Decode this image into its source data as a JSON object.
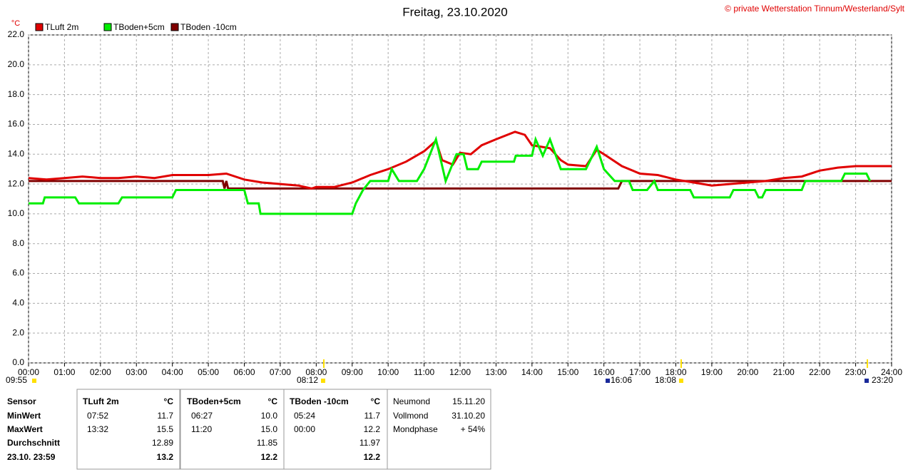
{
  "chart_data": {
    "type": "line",
    "title": "Freitag, 23.10.2020",
    "copyright": "© private Wetterstation Tinnum/Westerland/Sylt",
    "y_label": "°C",
    "xlim": [
      0,
      24
    ],
    "ylim": [
      0,
      22
    ],
    "grid": true,
    "xticks": [
      {
        "value": 0,
        "label": "00:00"
      },
      {
        "value": 1,
        "label": "01:00"
      },
      {
        "value": 2,
        "label": "02:00"
      },
      {
        "value": 3,
        "label": "03:00"
      },
      {
        "value": 4,
        "label": "04:00"
      },
      {
        "value": 5,
        "label": "05:00"
      },
      {
        "value": 6,
        "label": "06:00"
      },
      {
        "value": 7,
        "label": "07:00"
      },
      {
        "value": 8,
        "label": "08:00"
      },
      {
        "value": 9,
        "label": "09:00"
      },
      {
        "value": 10,
        "label": "10:00"
      },
      {
        "value": 11,
        "label": "11:00"
      },
      {
        "value": 12,
        "label": "12:00"
      },
      {
        "value": 13,
        "label": "13:00"
      },
      {
        "value": 14,
        "label": "14:00"
      },
      {
        "value": 15,
        "label": "15:00"
      },
      {
        "value": 16,
        "label": "16:00"
      },
      {
        "value": 17,
        "label": "17:00"
      },
      {
        "value": 18,
        "label": "18:00"
      },
      {
        "value": 19,
        "label": "19:00"
      },
      {
        "value": 20,
        "label": "20:00"
      },
      {
        "value": 21,
        "label": "21:00"
      },
      {
        "value": 22,
        "label": "22:00"
      },
      {
        "value": 23,
        "label": "23:00"
      },
      {
        "value": 24,
        "label": "24:00"
      }
    ],
    "yticks": [
      {
        "value": 0,
        "label": "0.0"
      },
      {
        "value": 2,
        "label": "2.0"
      },
      {
        "value": 4,
        "label": "4.0"
      },
      {
        "value": 6,
        "label": "6.0"
      },
      {
        "value": 8,
        "label": "8.0"
      },
      {
        "value": 10,
        "label": "10.0"
      },
      {
        "value": 12,
        "label": "12.0"
      },
      {
        "value": 14,
        "label": "14.0"
      },
      {
        "value": 16,
        "label": "16.0"
      },
      {
        "value": 18,
        "label": "18.0"
      },
      {
        "value": 20,
        "label": "20.0"
      },
      {
        "value": 22,
        "label": "22.0"
      }
    ],
    "annotations": [
      "09:55",
      "08:12",
      "16:06",
      "18:08",
      "23:20"
    ],
    "series": [
      {
        "name": "TLuft 2m",
        "color": "#e00000",
        "x": [
          0,
          0.5,
          1,
          1.5,
          2,
          2.5,
          3,
          3.5,
          4,
          4.5,
          5,
          5.5,
          6,
          6.5,
          7,
          7.5,
          7.87,
          8,
          8.5,
          9,
          9.5,
          10,
          10.5,
          11,
          11.33,
          11.5,
          11.8,
          12,
          12.3,
          12.6,
          13,
          13.53,
          13.8,
          14,
          14.5,
          14.8,
          15,
          15.5,
          15.8,
          16,
          16.5,
          17,
          17.5,
          18,
          18.5,
          19,
          19.5,
          20,
          20.5,
          21,
          21.5,
          22,
          22.5,
          23,
          24
        ],
        "values": [
          12.4,
          12.3,
          12.4,
          12.5,
          12.4,
          12.4,
          12.5,
          12.4,
          12.6,
          12.6,
          12.6,
          12.7,
          12.3,
          12.1,
          12.0,
          11.9,
          11.7,
          11.8,
          11.8,
          12.1,
          12.6,
          13.0,
          13.5,
          14.2,
          14.9,
          13.6,
          13.3,
          14.1,
          14.0,
          14.6,
          15.0,
          15.5,
          15.3,
          14.6,
          14.4,
          13.6,
          13.3,
          13.2,
          14.3,
          14.0,
          13.2,
          12.7,
          12.6,
          12.3,
          12.1,
          11.9,
          12.0,
          12.1,
          12.2,
          12.4,
          12.5,
          12.9,
          13.1,
          13.2,
          13.2
        ]
      },
      {
        "name": "TBoden+5cm",
        "color": "#00ee00",
        "x": [
          0,
          0.4,
          0.45,
          1.3,
          1.4,
          2.5,
          2.6,
          4.0,
          4.1,
          6.0,
          6.1,
          6.4,
          6.45,
          7,
          9,
          9.1,
          9.3,
          9.5,
          10,
          10.1,
          10.3,
          10.8,
          11,
          11.33,
          11.6,
          11.9,
          12.1,
          12.2,
          12.5,
          12.6,
          13.5,
          13.55,
          14.0,
          14.1,
          14.3,
          14.5,
          14.8,
          15.5,
          15.8,
          16.0,
          16.3,
          16.7,
          16.8,
          17.2,
          17.4,
          17.5,
          18.4,
          18.5,
          19.5,
          19.6,
          20.2,
          20.3,
          20.4,
          20.5,
          21.5,
          21.6,
          22.6,
          22.7,
          23.3,
          23.4
        ],
        "values": [
          10.7,
          10.7,
          11.1,
          11.1,
          10.7,
          10.7,
          11.1,
          11.1,
          11.6,
          11.6,
          10.7,
          10.7,
          10.0,
          10.0,
          10.0,
          10.7,
          11.6,
          12.2,
          12.2,
          13.0,
          12.2,
          12.2,
          13.0,
          15.0,
          12.2,
          14.0,
          14.0,
          13.0,
          13.0,
          13.5,
          13.5,
          13.9,
          13.9,
          15.0,
          13.9,
          15.0,
          13.0,
          13.0,
          14.5,
          13.0,
          12.2,
          12.2,
          11.6,
          11.6,
          12.2,
          11.6,
          11.6,
          11.1,
          11.1,
          11.6,
          11.6,
          11.1,
          11.1,
          11.6,
          11.6,
          12.2,
          12.2,
          12.7,
          12.7,
          12.2
        ]
      },
      {
        "name": "TBoden -10cm",
        "color": "#800000",
        "x": [
          0,
          5.4,
          5.45,
          5.5,
          5.55,
          16.4,
          16.5,
          24
        ],
        "values": [
          12.2,
          12.2,
          11.7,
          12.2,
          11.7,
          11.7,
          12.2,
          12.2
        ]
      }
    ]
  },
  "table": {
    "row_labels": [
      "Sensor",
      "MinWert",
      "MaxWert",
      "Durchschnitt",
      "23.10. 23:59"
    ],
    "sensors": [
      {
        "name": "TLuft 2m",
        "unit": "°C",
        "min_time": "07:52",
        "min": "11.7",
        "max_time": "13:32",
        "max": "15.5",
        "avg": "12.89",
        "current": "13.2"
      },
      {
        "name": "TBoden+5cm",
        "unit": "°C",
        "min_time": "06:27",
        "min": "10.0",
        "max_time": "11:20",
        "max": "15.0",
        "avg": "11.85",
        "current": "12.2"
      },
      {
        "name": "TBoden -10cm",
        "unit": "°C",
        "min_time": "05:24",
        "min": "11.7",
        "max_time": "00:00",
        "max": "12.2",
        "avg": "11.97",
        "current": "12.2"
      }
    ],
    "moon": [
      [
        "Neumond",
        "15.11.20"
      ],
      [
        "Vollmond",
        "31.10.20"
      ],
      [
        "Mondphase",
        "+ 54%"
      ]
    ]
  }
}
